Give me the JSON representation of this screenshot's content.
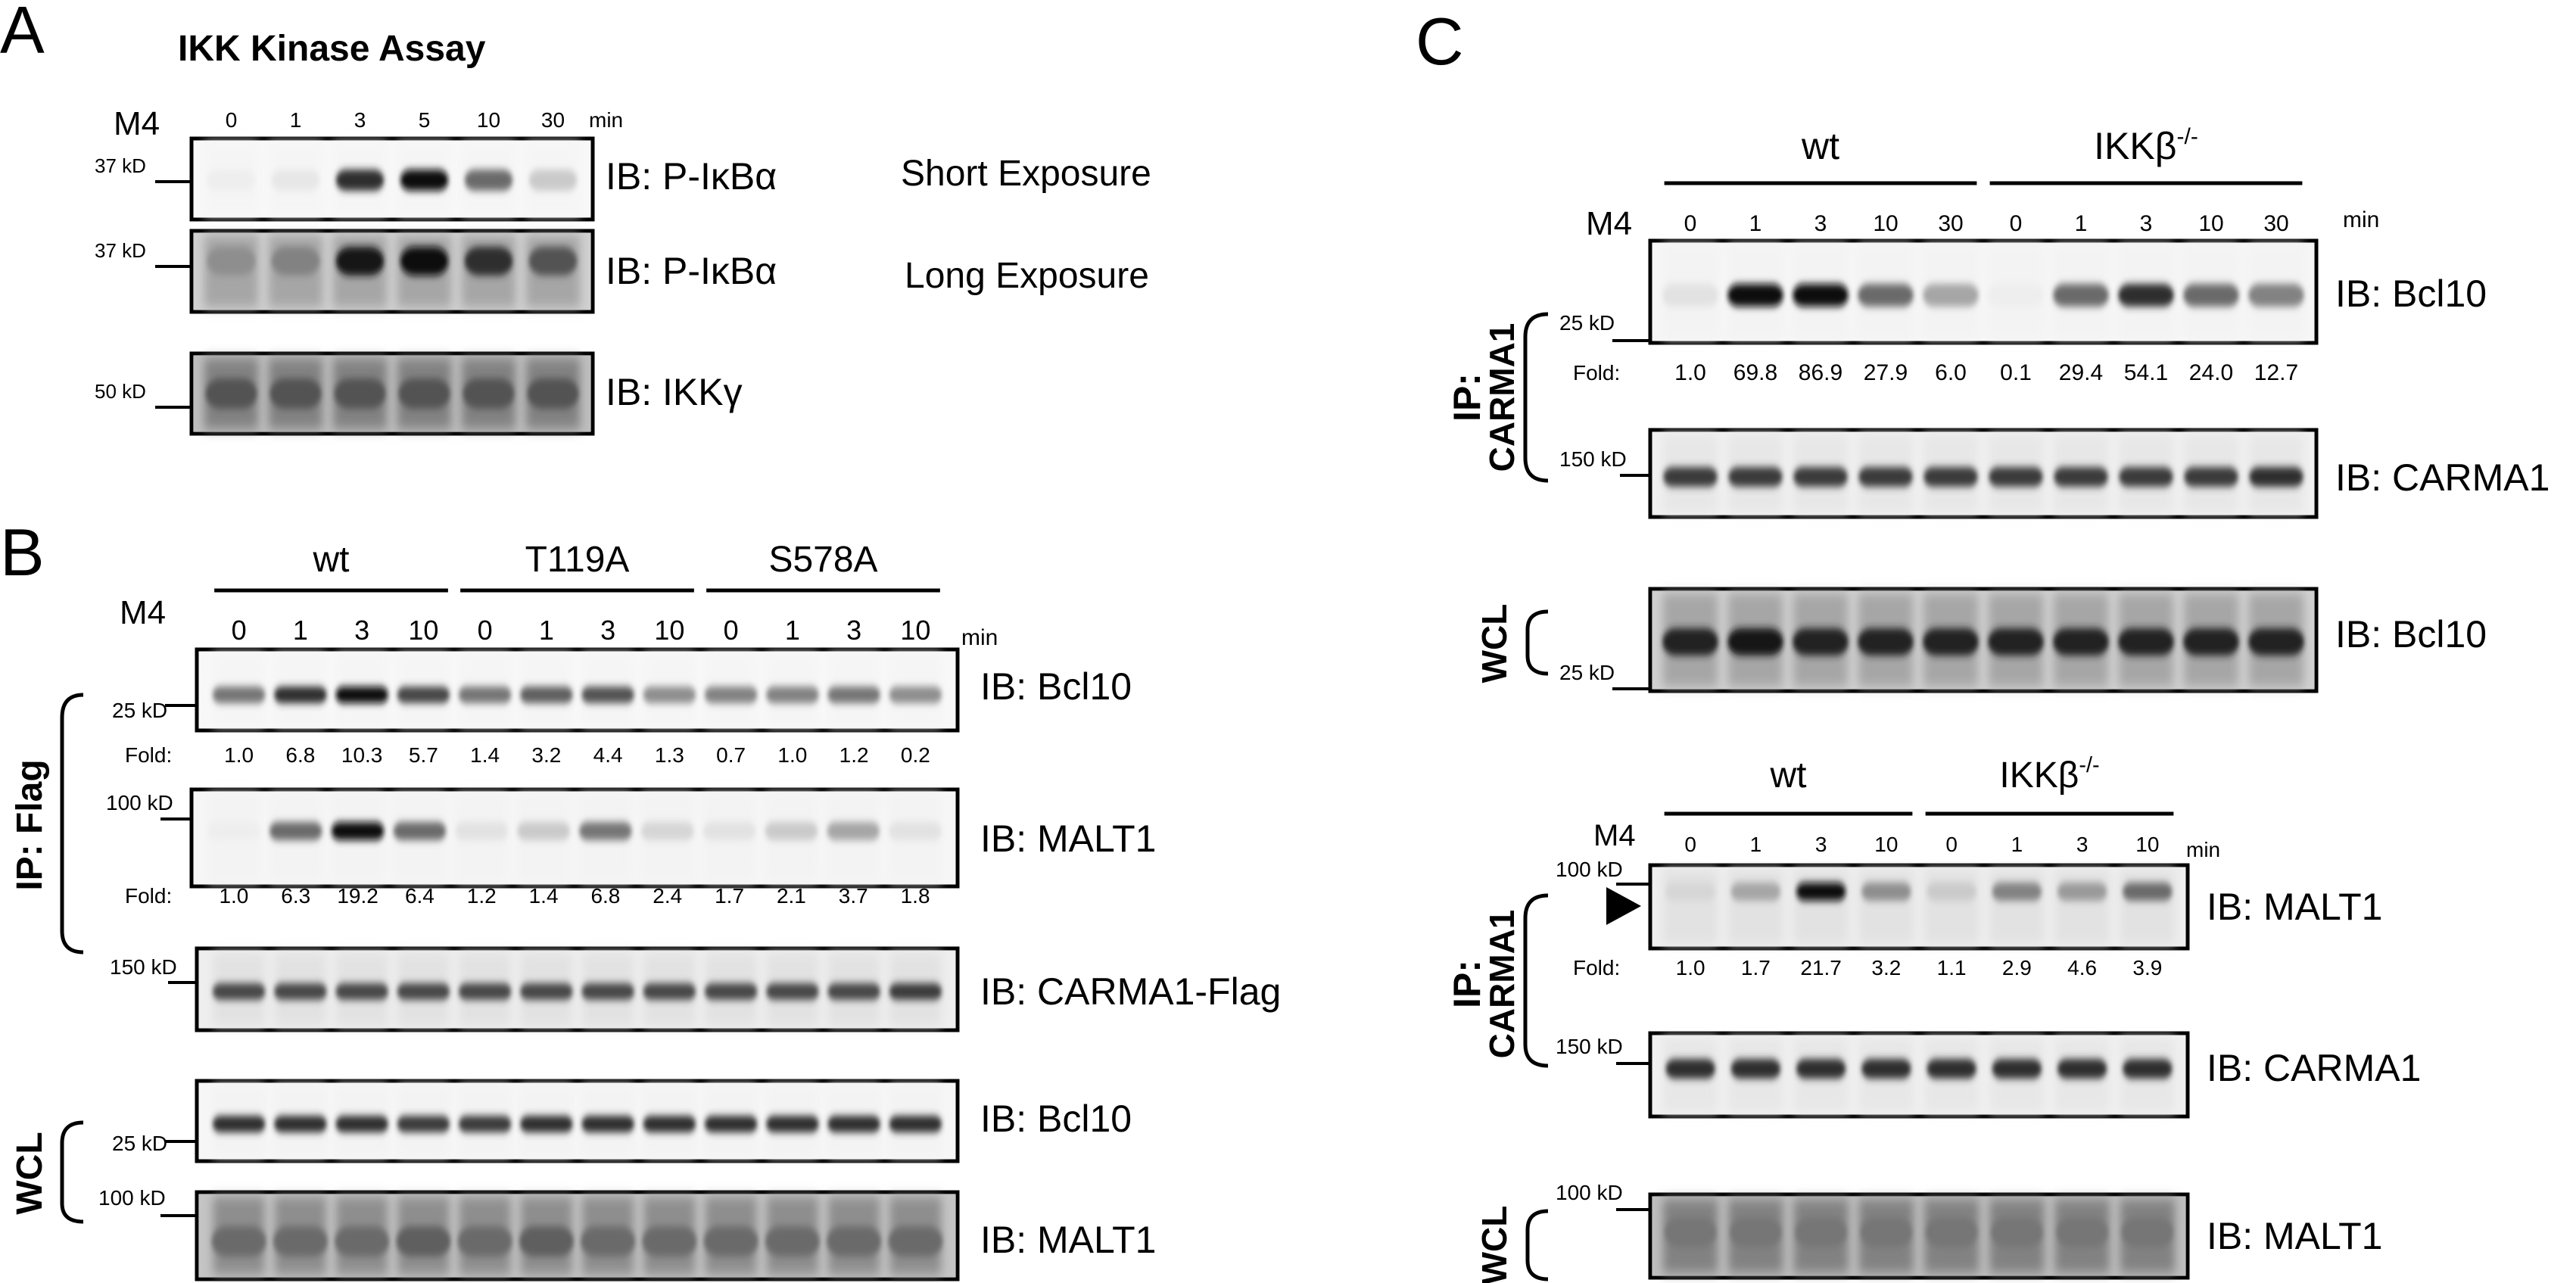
{
  "figure": {
    "panels": [
      {
        "id": "A",
        "letter": "A",
        "title": "IKK Kinase Assay",
        "stimulus": "M4",
        "time_unit": "min",
        "times": [
          "0",
          "1",
          "3",
          "5",
          "10",
          "30"
        ],
        "blots": [
          {
            "mw": "37 kD",
            "label": "IB: P-IκBα",
            "note": "Short Exposure",
            "bands": [
              0.05,
              0.08,
              0.85,
              1.0,
              0.6,
              0.2
            ],
            "bg": 0.02
          },
          {
            "mw": "37 kD",
            "label": "IB: P-IκBα",
            "note": "Long Exposure",
            "bands": [
              0.45,
              0.5,
              0.95,
              1.0,
              0.85,
              0.7
            ],
            "bg": 0.35
          },
          {
            "mw": "50 kD",
            "label": "IB: IKKγ",
            "note": "",
            "bands": [
              0.7,
              0.7,
              0.7,
              0.7,
              0.7,
              0.7
            ],
            "bg": 0.5
          }
        ]
      },
      {
        "id": "B",
        "letter": "B",
        "stimulus": "M4",
        "time_unit": "min",
        "groups": [
          {
            "name": "wt",
            "times": [
              "0",
              "1",
              "3",
              "10"
            ]
          },
          {
            "name": "T119A",
            "times": [
              "0",
              "1",
              "3",
              "10"
            ]
          },
          {
            "name": "S578A",
            "times": [
              "0",
              "1",
              "3",
              "10"
            ]
          }
        ],
        "ip_label": "IP: Flag",
        "wcl_label": "WCL",
        "fold_label": "Fold:",
        "blots": [
          {
            "mw": "25 kD",
            "label": "IB: Bcl10",
            "bands": [
              0.55,
              0.85,
              1.0,
              0.75,
              0.55,
              0.65,
              0.7,
              0.45,
              0.5,
              0.5,
              0.55,
              0.45
            ],
            "bg": 0.02,
            "fold": [
              "1.0",
              "6.8",
              "10.3",
              "5.7",
              "1.4",
              "3.2",
              "4.4",
              "1.3",
              "0.7",
              "1.0",
              "1.2",
              "0.2"
            ]
          },
          {
            "mw": "100 kD",
            "label": "IB: MALT1",
            "bands": [
              0.05,
              0.6,
              1.0,
              0.6,
              0.1,
              0.2,
              0.55,
              0.15,
              0.1,
              0.2,
              0.35,
              0.1
            ],
            "bg": 0.03,
            "fold": [
              "1.0",
              "6.3",
              "19.2",
              "6.4",
              "1.2",
              "1.4",
              "6.8",
              "2.4",
              "1.7",
              "2.1",
              "3.7",
              "1.8"
            ]
          },
          {
            "mw": "150 kD",
            "label": "IB: CARMA1-Flag",
            "bands": [
              0.75,
              0.75,
              0.75,
              0.75,
              0.75,
              0.75,
              0.75,
              0.75,
              0.75,
              0.75,
              0.75,
              0.8
            ],
            "bg": 0.1,
            "fold": []
          },
          {
            "mw": "25 kD",
            "label": "IB: Bcl10",
            "bands": [
              0.85,
              0.85,
              0.85,
              0.8,
              0.8,
              0.85,
              0.85,
              0.85,
              0.85,
              0.85,
              0.85,
              0.85
            ],
            "bg": 0.03,
            "fold": []
          },
          {
            "mw": "100 kD",
            "label": "IB: MALT1",
            "bands": [
              0.6,
              0.6,
              0.6,
              0.65,
              0.6,
              0.65,
              0.6,
              0.6,
              0.6,
              0.6,
              0.6,
              0.6
            ],
            "bg": 0.45,
            "fold": []
          }
        ]
      },
      {
        "id": "C",
        "letter": "C",
        "stimulus": "M4",
        "time_unit": "min",
        "fold_label": "Fold:",
        "top": {
          "groups": [
            {
              "name": "wt",
              "times": [
                "0",
                "1",
                "3",
                "10",
                "30"
              ]
            },
            {
              "name": "IKKβ",
              "sup": "-/-",
              "times": [
                "0",
                "1",
                "3",
                "10",
                "30"
              ]
            }
          ],
          "ip_label": "IP:",
          "ip_label2": "CARMA1",
          "wcl_label": "WCL",
          "blots": [
            {
              "mw": "25 kD",
              "label": "IB: Bcl10",
              "bands": [
                0.1,
                1.0,
                1.0,
                0.6,
                0.35,
                0.05,
                0.6,
                0.85,
                0.6,
                0.5
              ],
              "bg": 0.03,
              "fold": [
                "1.0",
                "69.8",
                "86.9",
                "27.9",
                "6.0",
                "0.1",
                "29.4",
                "54.1",
                "24.0",
                "12.7"
              ]
            },
            {
              "mw": "150 kD",
              "label": "IB: CARMA1",
              "bands": [
                0.8,
                0.8,
                0.8,
                0.8,
                0.8,
                0.8,
                0.8,
                0.8,
                0.8,
                0.85
              ],
              "bg": 0.08,
              "fold": []
            },
            {
              "mw": "25 kD",
              "label": "IB: Bcl10",
              "bands": [
                0.9,
                0.95,
                0.9,
                0.9,
                0.9,
                0.9,
                0.9,
                0.9,
                0.9,
                0.9
              ],
              "bg": 0.35,
              "fold": []
            }
          ]
        },
        "bottom": {
          "groups": [
            {
              "name": "wt",
              "times": [
                "0",
                "1",
                "3",
                "10"
              ]
            },
            {
              "name": "IKKβ",
              "sup": "-/-",
              "times": [
                "0",
                "1",
                "3",
                "10"
              ]
            }
          ],
          "ip_label": "IP:",
          "ip_label2": "CARMA1",
          "wcl_label": "WCL",
          "blots": [
            {
              "mw": "100 kD",
              "label": "IB: MALT1",
              "bands": [
                0.15,
                0.35,
                1.0,
                0.45,
                0.2,
                0.5,
                0.4,
                0.6
              ],
              "bg": 0.1,
              "fold": [
                "1.0",
                "1.7",
                "21.7",
                "3.2",
                "1.1",
                "2.9",
                "4.6",
                "3.9"
              ]
            },
            {
              "mw": "150 kD",
              "label": "IB: CARMA1",
              "bands": [
                0.85,
                0.85,
                0.85,
                0.85,
                0.85,
                0.85,
                0.85,
                0.85
              ],
              "bg": 0.08,
              "fold": []
            },
            {
              "mw": "100 kD",
              "label": "IB: MALT1",
              "bands": [
                0.55,
                0.55,
                0.55,
                0.55,
                0.55,
                0.55,
                0.55,
                0.55
              ],
              "bg": 0.5,
              "fold": []
            }
          ]
        }
      }
    ]
  }
}
